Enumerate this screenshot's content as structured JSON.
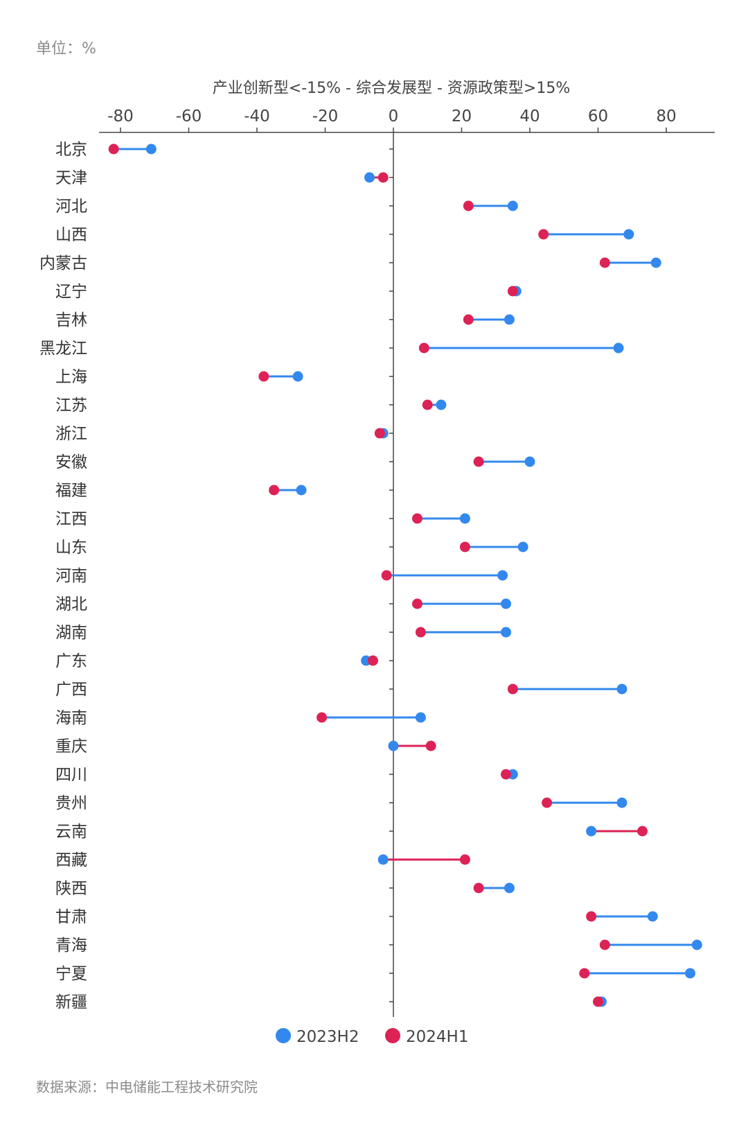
{
  "unit_label": "单位：%",
  "source_label": "数据来源：中电储能工程技术研究院",
  "colors": {
    "series_2023H2": "#3388ee",
    "series_2024H1": "#dd2255",
    "axis": "#444444"
  },
  "chart_data": {
    "type": "dumbbell",
    "xlabel": "产业创新型<-15% - 综合发展型 - 资源政策型>15%",
    "x_ticks": [
      -80,
      -60,
      -40,
      -20,
      0,
      20,
      40,
      60,
      80
    ],
    "xlim": [
      -86,
      93
    ],
    "categories": [
      "北京",
      "天津",
      "河北",
      "山西",
      "内蒙古",
      "辽宁",
      "吉林",
      "黑龙江",
      "上海",
      "江苏",
      "浙江",
      "安徽",
      "福建",
      "江西",
      "山东",
      "河南",
      "湖北",
      "湖南",
      "广东",
      "广西",
      "海南",
      "重庆",
      "四川",
      "贵州",
      "云南",
      "西藏",
      "陕西",
      "甘肃",
      "青海",
      "宁夏",
      "新疆"
    ],
    "series": [
      {
        "name": "2023H2",
        "values": [
          -71,
          -7,
          35,
          69,
          77,
          36,
          34,
          66,
          -28,
          14,
          -3,
          40,
          -27,
          21,
          38,
          32,
          33,
          33,
          -8,
          67,
          8,
          0,
          35,
          67,
          58,
          -3,
          34,
          76,
          89,
          87,
          61
        ]
      },
      {
        "name": "2024H1",
        "values": [
          -82,
          -3,
          22,
          44,
          62,
          35,
          22,
          9,
          -38,
          10,
          -4,
          25,
          -35,
          7,
          21,
          -2,
          7,
          8,
          -6,
          35,
          -21,
          11,
          33,
          45,
          73,
          21,
          25,
          58,
          62,
          56,
          60
        ]
      }
    ],
    "legend_position": "bottom-center",
    "grid": false
  }
}
